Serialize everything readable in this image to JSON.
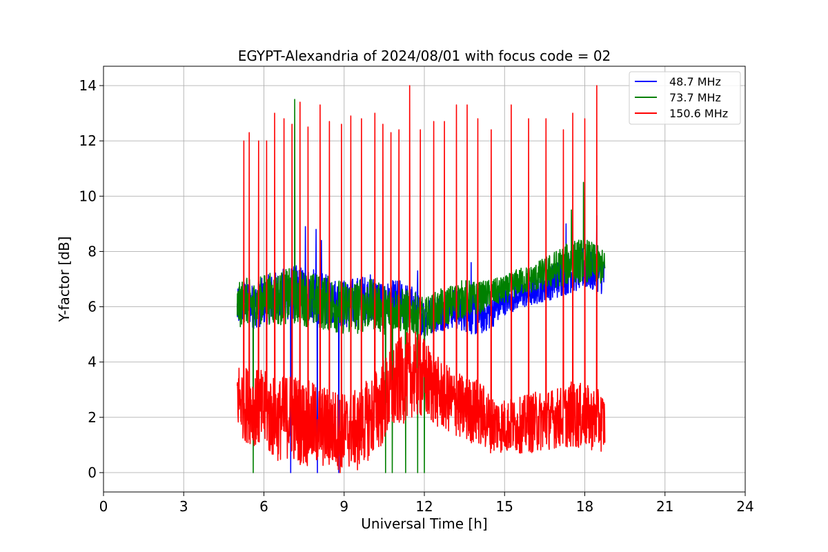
{
  "chart_data": {
    "type": "line",
    "title": "EGYPT-Alexandria of 2024/08/01 with focus code = 02",
    "xlabel": "Universal Time [h]",
    "ylabel": "Y-factor [dB]",
    "xlim": [
      0,
      24
    ],
    "ylim": [
      -0.7,
      14.7
    ],
    "xticks": [
      0,
      3,
      6,
      9,
      12,
      15,
      18,
      21,
      24
    ],
    "yticks": [
      0,
      2,
      4,
      6,
      8,
      10,
      12,
      14
    ],
    "grid": true,
    "legend_position": "top-right",
    "series": [
      {
        "name": "  48.7 MHz",
        "color": "#0000ff",
        "x": [
          5.0,
          5.3,
          5.6,
          6.0,
          6.5,
          7.0,
          7.5,
          8.0,
          8.5,
          9.0,
          9.5,
          10.0,
          10.5,
          11.0,
          11.5,
          12.0,
          12.5,
          13.0,
          13.5,
          14.0,
          14.5,
          15.0,
          15.5,
          16.0,
          16.5,
          17.0,
          17.5,
          18.0,
          18.5,
          18.75
        ],
        "values": [
          5.9,
          6.3,
          6.0,
          6.2,
          6.4,
          6.5,
          6.5,
          6.3,
          6.2,
          6.1,
          6.2,
          6.3,
          6.1,
          6.2,
          6.0,
          5.6,
          5.8,
          5.9,
          5.9,
          5.7,
          5.8,
          6.2,
          6.4,
          6.5,
          6.8,
          7.0,
          7.3,
          7.4,
          7.2,
          7.1
        ],
        "spread": [
          0.7,
          0.8,
          0.8,
          0.9,
          0.9,
          1.0,
          1.0,
          1.0,
          0.9,
          0.9,
          0.9,
          0.9,
          0.8,
          0.8,
          0.8,
          0.7,
          0.7,
          0.7,
          0.8,
          0.8,
          0.6,
          0.5,
          0.5,
          0.5,
          0.6,
          0.7,
          0.8,
          0.8,
          0.7,
          0.7
        ],
        "spikes": [
          {
            "x": 7.55,
            "y": 8.9
          },
          {
            "x": 7.95,
            "y": 8.8
          },
          {
            "x": 8.15,
            "y": 8.4
          },
          {
            "x": 11.75,
            "y": 7.3
          },
          {
            "x": 13.75,
            "y": 7.6
          },
          {
            "x": 17.3,
            "y": 9.0
          },
          {
            "x": 18.45,
            "y": 9.3
          },
          {
            "x": 7.0,
            "y": 0.0
          },
          {
            "x": 8.0,
            "y": 0.0
          },
          {
            "x": 8.8,
            "y": 0.0
          }
        ]
      },
      {
        "name": "  73.7 MHz",
        "color": "#008000",
        "x": [
          5.0,
          5.3,
          5.6,
          6.0,
          6.5,
          7.0,
          7.5,
          8.0,
          8.5,
          9.0,
          9.5,
          10.0,
          10.5,
          11.0,
          11.5,
          12.0,
          12.5,
          13.0,
          13.5,
          14.0,
          14.5,
          15.0,
          15.5,
          16.0,
          16.5,
          17.0,
          17.5,
          18.0,
          18.5,
          18.75
        ],
        "values": [
          6.0,
          6.2,
          6.1,
          6.3,
          6.3,
          6.4,
          6.3,
          6.2,
          6.1,
          6.0,
          6.0,
          6.1,
          5.9,
          5.9,
          5.8,
          5.6,
          5.9,
          6.1,
          6.3,
          6.3,
          6.5,
          6.6,
          6.9,
          7.0,
          7.2,
          7.4,
          7.6,
          7.7,
          7.5,
          7.4
        ],
        "spread": [
          0.8,
          0.9,
          0.8,
          0.9,
          1.0,
          1.0,
          1.0,
          1.0,
          1.0,
          1.0,
          1.0,
          0.9,
          0.9,
          0.8,
          0.8,
          0.7,
          0.7,
          0.7,
          0.7,
          0.6,
          0.5,
          0.5,
          0.5,
          0.5,
          0.6,
          0.7,
          0.8,
          0.8,
          0.7,
          0.6
        ],
        "spikes": [
          {
            "x": 7.15,
            "y": 13.5
          },
          {
            "x": 17.5,
            "y": 9.5
          },
          {
            "x": 17.95,
            "y": 10.5
          },
          {
            "x": 5.6,
            "y": 0.0
          },
          {
            "x": 10.55,
            "y": 0.0
          },
          {
            "x": 10.8,
            "y": 0.0
          },
          {
            "x": 11.3,
            "y": 0.0
          },
          {
            "x": 11.75,
            "y": 0.0
          },
          {
            "x": 12.0,
            "y": 0.0
          }
        ]
      },
      {
        "name": "150.6 MHz",
        "color": "#ff0000",
        "x": [
          5.0,
          5.3,
          5.6,
          6.0,
          6.5,
          7.0,
          7.5,
          8.0,
          8.5,
          9.0,
          9.5,
          10.0,
          10.5,
          11.0,
          11.5,
          12.0,
          12.5,
          13.0,
          13.5,
          14.0,
          14.5,
          15.0,
          15.5,
          16.0,
          16.5,
          17.0,
          17.5,
          18.0,
          18.5,
          18.75
        ],
        "values": [
          2.8,
          2.5,
          2.4,
          2.2,
          1.9,
          2.1,
          1.8,
          1.7,
          1.6,
          1.5,
          1.6,
          2.0,
          2.6,
          3.2,
          3.6,
          3.4,
          2.9,
          2.6,
          2.3,
          2.2,
          1.8,
          1.7,
          1.7,
          1.8,
          1.9,
          2.0,
          2.1,
          2.0,
          1.9,
          1.8
        ],
        "spread": [
          1.3,
          1.4,
          1.4,
          1.5,
          1.5,
          1.6,
          1.6,
          1.5,
          1.5,
          1.4,
          1.4,
          1.5,
          1.6,
          1.6,
          1.6,
          1.5,
          1.3,
          1.2,
          1.2,
          1.2,
          1.1,
          1.0,
          1.0,
          1.1,
          1.1,
          1.1,
          1.2,
          1.2,
          1.1,
          1.1
        ],
        "spikes": [
          {
            "x": 5.25,
            "y": 12.0
          },
          {
            "x": 5.45,
            "y": 12.3
          },
          {
            "x": 5.8,
            "y": 12.0
          },
          {
            "x": 6.1,
            "y": 12.0
          },
          {
            "x": 6.4,
            "y": 13.0
          },
          {
            "x": 6.75,
            "y": 12.8
          },
          {
            "x": 7.05,
            "y": 12.6
          },
          {
            "x": 7.35,
            "y": 13.4
          },
          {
            "x": 7.65,
            "y": 12.5
          },
          {
            "x": 8.1,
            "y": 13.3
          },
          {
            "x": 8.45,
            "y": 12.7
          },
          {
            "x": 8.9,
            "y": 12.6
          },
          {
            "x": 9.25,
            "y": 12.9
          },
          {
            "x": 9.65,
            "y": 12.8
          },
          {
            "x": 10.15,
            "y": 13.0
          },
          {
            "x": 10.45,
            "y": 12.6
          },
          {
            "x": 10.75,
            "y": 12.3
          },
          {
            "x": 11.05,
            "y": 12.4
          },
          {
            "x": 11.45,
            "y": 14.0
          },
          {
            "x": 11.85,
            "y": 12.4
          },
          {
            "x": 12.35,
            "y": 12.7
          },
          {
            "x": 12.75,
            "y": 12.7
          },
          {
            "x": 13.2,
            "y": 13.3
          },
          {
            "x": 13.6,
            "y": 13.3
          },
          {
            "x": 14.0,
            "y": 12.8
          },
          {
            "x": 14.5,
            "y": 12.4
          },
          {
            "x": 15.25,
            "y": 13.3
          },
          {
            "x": 15.9,
            "y": 12.8
          },
          {
            "x": 16.55,
            "y": 12.8
          },
          {
            "x": 17.2,
            "y": 12.4
          },
          {
            "x": 17.55,
            "y": 13.0
          },
          {
            "x": 18.0,
            "y": 12.8
          },
          {
            "x": 18.45,
            "y": 14.0
          },
          {
            "x": 8.85,
            "y": 0.0
          },
          {
            "x": 9.5,
            "y": 0.1
          }
        ]
      }
    ]
  }
}
